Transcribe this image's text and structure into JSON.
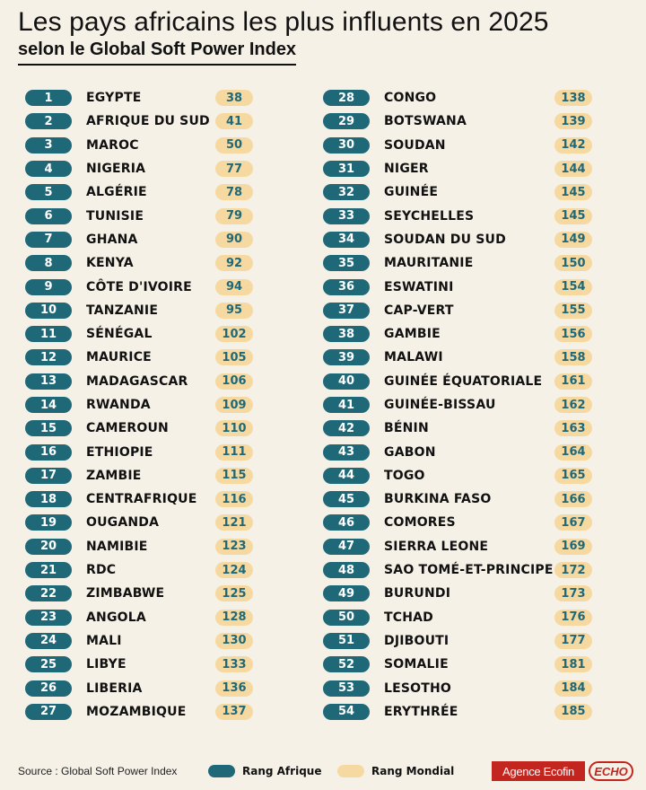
{
  "header": {
    "title": "Les pays africains les plus influents en 2025",
    "subtitle": "selon le Global Soft Power Index"
  },
  "colors": {
    "rank_badge": "#1f6878",
    "world_badge": "#f6d9a0",
    "background": "#f6f1e7",
    "logo_red": "#c3261f"
  },
  "rows_left": [
    {
      "rank": "1",
      "country": "EGYPTE",
      "world": "38"
    },
    {
      "rank": "2",
      "country": "AFRIQUE DU SUD",
      "world": "41"
    },
    {
      "rank": "3",
      "country": "MAROC",
      "world": "50"
    },
    {
      "rank": "4",
      "country": "NIGERIA",
      "world": "77"
    },
    {
      "rank": "5",
      "country": "ALGÉRIE",
      "world": "78"
    },
    {
      "rank": "6",
      "country": "TUNISIE",
      "world": "79"
    },
    {
      "rank": "7",
      "country": "GHANA",
      "world": "90"
    },
    {
      "rank": "8",
      "country": "KENYA",
      "world": "92"
    },
    {
      "rank": "9",
      "country": "CÔTE D'IVOIRE",
      "world": "94"
    },
    {
      "rank": "10",
      "country": "TANZANIE",
      "world": "95"
    },
    {
      "rank": "11",
      "country": "SÉNÉGAL",
      "world": "102"
    },
    {
      "rank": "12",
      "country": "MAURICE",
      "world": "105"
    },
    {
      "rank": "13",
      "country": "MADAGASCAR",
      "world": "106"
    },
    {
      "rank": "14",
      "country": "RWANDA",
      "world": "109"
    },
    {
      "rank": "15",
      "country": "CAMEROUN",
      "world": "110"
    },
    {
      "rank": "16",
      "country": "ETHIOPIE",
      "world": "111"
    },
    {
      "rank": "17",
      "country": "ZAMBIE",
      "world": "115"
    },
    {
      "rank": "18",
      "country": "CENTRAFRIQUE",
      "world": "116"
    },
    {
      "rank": "19",
      "country": "OUGANDA",
      "world": "121"
    },
    {
      "rank": "20",
      "country": "NAMIBIE",
      "world": "123"
    },
    {
      "rank": "21",
      "country": "RDC",
      "world": "124"
    },
    {
      "rank": "22",
      "country": "ZIMBABWE",
      "world": "125"
    },
    {
      "rank": "23",
      "country": "ANGOLA",
      "world": "128"
    },
    {
      "rank": "24",
      "country": "MALI",
      "world": "130"
    },
    {
      "rank": "25",
      "country": "LIBYE",
      "world": "133"
    },
    {
      "rank": "26",
      "country": "LIBERIA",
      "world": "136"
    },
    {
      "rank": "27",
      "country": "MOZAMBIQUE",
      "world": "137"
    }
  ],
  "rows_right": [
    {
      "rank": "28",
      "country": "CONGO",
      "world": "138"
    },
    {
      "rank": "29",
      "country": "BOTSWANA",
      "world": "139"
    },
    {
      "rank": "30",
      "country": "SOUDAN",
      "world": "142"
    },
    {
      "rank": "31",
      "country": "NIGER",
      "world": "144"
    },
    {
      "rank": "32",
      "country": "GUINÉE",
      "world": "145"
    },
    {
      "rank": "33",
      "country": "SEYCHELLES",
      "world": "145"
    },
    {
      "rank": "34",
      "country": "SOUDAN DU SUD",
      "world": "149"
    },
    {
      "rank": "35",
      "country": "MAURITANIE",
      "world": "150"
    },
    {
      "rank": "36",
      "country": "ESWATINI",
      "world": "154"
    },
    {
      "rank": "37",
      "country": "CAP-VERT",
      "world": "155"
    },
    {
      "rank": "38",
      "country": "GAMBIE",
      "world": "156"
    },
    {
      "rank": "39",
      "country": "MALAWI",
      "world": "158"
    },
    {
      "rank": "40",
      "country": "GUINÉE ÉQUATORIALE",
      "world": "161"
    },
    {
      "rank": "41",
      "country": "GUINÉE-BISSAU",
      "world": "162"
    },
    {
      "rank": "42",
      "country": "BÉNIN",
      "world": "163"
    },
    {
      "rank": "43",
      "country": "GABON",
      "world": "164"
    },
    {
      "rank": "44",
      "country": "TOGO",
      "world": "165"
    },
    {
      "rank": "45",
      "country": "BURKINA FASO",
      "world": "166"
    },
    {
      "rank": "46",
      "country": "COMORES",
      "world": "167"
    },
    {
      "rank": "47",
      "country": "SIERRA LEONE",
      "world": "169"
    },
    {
      "rank": "48",
      "country": "SAO TOMÉ-ET-PRINCIPE",
      "world": "172"
    },
    {
      "rank": "49",
      "country": "BURUNDI",
      "world": "173"
    },
    {
      "rank": "50",
      "country": "TCHAD",
      "world": "176"
    },
    {
      "rank": "51",
      "country": "DJIBOUTI",
      "world": "177"
    },
    {
      "rank": "52",
      "country": "SOMALIE",
      "world": "181"
    },
    {
      "rank": "53",
      "country": "LESOTHO",
      "world": "184"
    },
    {
      "rank": "54",
      "country": "ERYTHRÉE",
      "world": "185"
    }
  ],
  "footer": {
    "source": "Source : Global Soft Power Index",
    "legend_rank_africa": "Rang Afrique",
    "legend_rank_world": "Rang Mondial",
    "logo_ecofin": "Agence Ecofin",
    "logo_echo": "ECHO"
  }
}
